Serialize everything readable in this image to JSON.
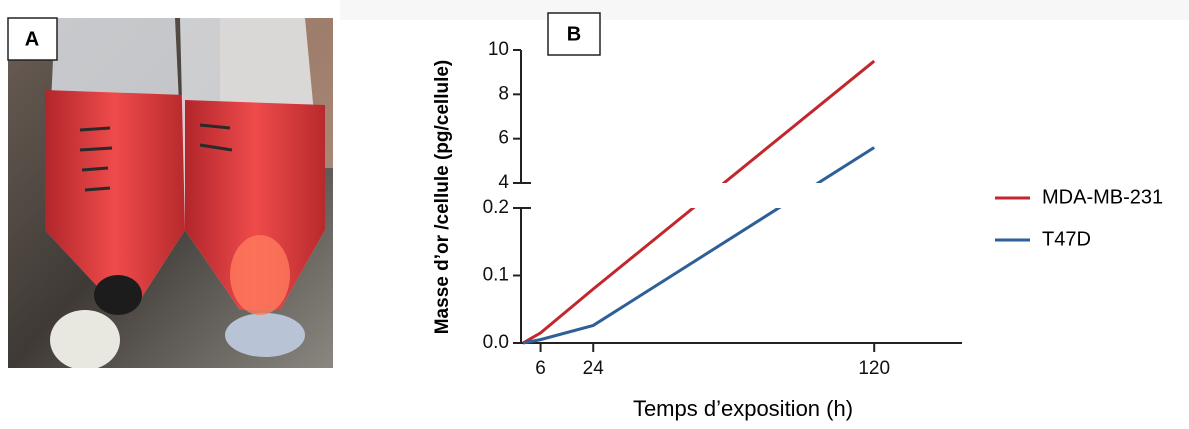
{
  "panels": [
    "A",
    "B"
  ],
  "chart_data": {
    "type": "line",
    "x_label": "Temps d’exposition (h)",
    "y_label": "Masse d’or /cellule (pg/cellule)",
    "x": [
      0,
      6,
      24,
      120
    ],
    "xlim": [
      0,
      150
    ],
    "xticks": [
      6,
      24,
      120
    ],
    "ylim": [
      0,
      10
    ],
    "y_break": [
      0.2,
      4
    ],
    "yticks": [
      {
        "value": 0,
        "label": "0.0"
      },
      0.1,
      0.2,
      4,
      6,
      8,
      10
    ],
    "legend": "right",
    "series": [
      {
        "name": "MDA-MB-231",
        "color": "#c1272d",
        "values": [
          0,
          0.015,
          0.08,
          9.5
        ]
      },
      {
        "name": "T47D",
        "color": "#2d5f98",
        "values": [
          0,
          0.005,
          0.026,
          5.6
        ]
      }
    ]
  }
}
